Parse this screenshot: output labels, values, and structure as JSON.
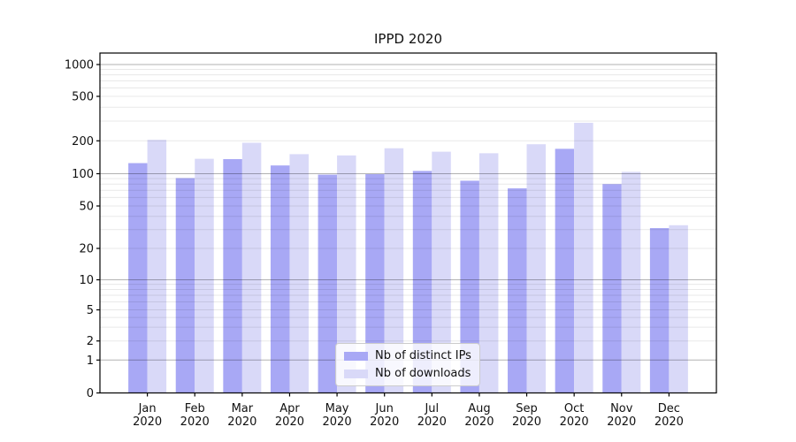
{
  "chart_data": {
    "type": "bar",
    "title": "IPPD 2020",
    "categories": [
      "Jan\n2020",
      "Feb\n2020",
      "Mar\n2020",
      "Apr\n2020",
      "May\n2020",
      "Jun\n2020",
      "Jul\n2020",
      "Aug\n2020",
      "Sep\n2020",
      "Oct\n2020",
      "Nov\n2020",
      "Dec\n2020"
    ],
    "series": [
      {
        "name": "Nb of distinct IPs",
        "color": "#a8a8f5",
        "values": [
          125,
          91,
          136,
          119,
          98,
          99,
          106,
          86,
          73,
          169,
          80,
          31
        ]
      },
      {
        "name": "Nb of downloads",
        "color": "#d9d9f8",
        "values": [
          204,
          137,
          192,
          151,
          147,
          171,
          159,
          154,
          186,
          290,
          104,
          33
        ]
      }
    ],
    "y_scale": "symlog",
    "y_ticks": [
      0,
      1,
      2,
      5,
      10,
      20,
      50,
      100,
      200,
      500,
      1000
    ],
    "ylim": [
      0,
      1280
    ],
    "grid": "major and minor horizontal gridlines, drawn above bars",
    "legend_position": "lower center"
  },
  "colors": {
    "major_grid": "rgba(0,0,0,0.30)",
    "minor_grid": "rgba(0,0,0,0.09)",
    "spine": "#000000",
    "text": "#111111"
  }
}
